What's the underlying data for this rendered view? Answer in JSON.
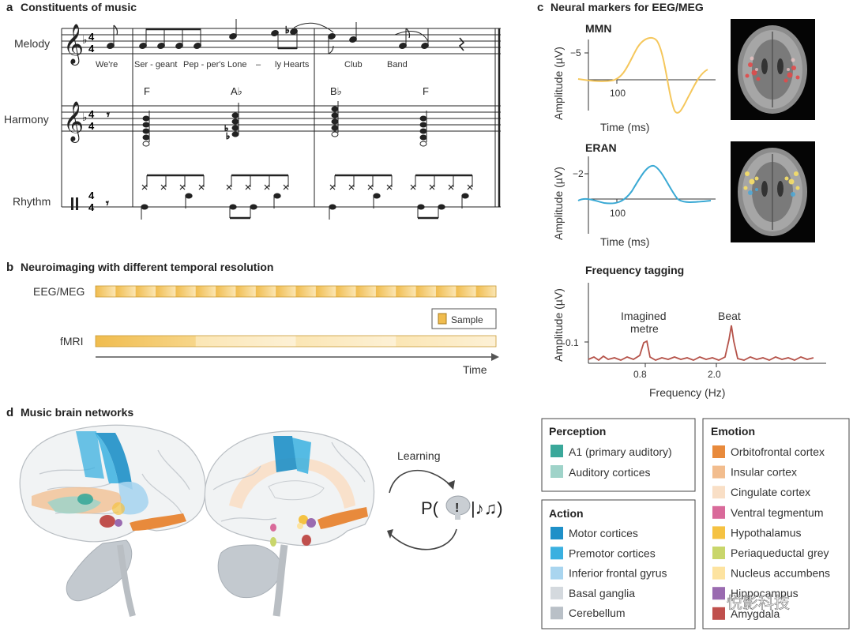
{
  "panels": {
    "a": {
      "letter": "a",
      "title": "Constituents of music"
    },
    "b": {
      "letter": "b",
      "title": "Neuroimaging with different temporal resolution"
    },
    "c": {
      "letter": "c",
      "title": "Neural markers for EEG/MEG"
    },
    "d": {
      "letter": "d",
      "title": "Music brain networks"
    }
  },
  "score": {
    "rows": [
      "Melody",
      "Harmony",
      "Rhythm"
    ],
    "time_signature": [
      "4",
      "4"
    ],
    "lyrics": [
      "We're",
      "Ser - geant",
      "Pep - per's",
      "Lone",
      "–",
      "ly Hearts",
      "Club",
      "Band"
    ],
    "chords": [
      "F",
      "A♭",
      "B♭",
      "F"
    ]
  },
  "imaging": {
    "eeg_label": "EEG/MEG",
    "fmri_label": "fMRI",
    "sample_label": "Sample",
    "time_label": "Time",
    "eeg_segments": 20,
    "fmri_segments": 4,
    "colors": {
      "dark": "#f0bc4e",
      "light": "#fbe6b4",
      "pale": "#fdf1d6"
    }
  },
  "markers": {
    "mmn": {
      "title": "MMN",
      "ylabel": "Amplitude (µV)",
      "xlabel": "Time (ms)",
      "ytick": "−5",
      "xtick": "100",
      "color": "#f5c75c"
    },
    "eran": {
      "title": "ERAN",
      "ylabel": "Amplitude (µV)",
      "xlabel": "Time (ms)",
      "ytick": "−2",
      "xtick": "100",
      "color": "#3aa9d4"
    },
    "freq": {
      "title": "Frequency tagging",
      "ylabel": "Amplitude (µV)",
      "xlabel": "Frequency (Hz)",
      "ytick": "0.1",
      "xticks": [
        "0.8",
        "2.0"
      ],
      "peak1_label": "Imagined\nmetre",
      "peak1_line1": "Imagined",
      "peak1_line2": "metre",
      "peak2_label": "Beat",
      "color": "#b5534a"
    }
  },
  "networks": {
    "learning_label": "Learning",
    "formula_left": "P(",
    "formula_mid": "!",
    "formula_right": "|♪♫)"
  },
  "legend": {
    "perception": {
      "title": "Perception",
      "items": [
        {
          "label": "A1 (primary auditory)",
          "color": "#3aa89a"
        },
        {
          "label": "Auditory cortices",
          "color": "#9fd3c9"
        }
      ]
    },
    "action": {
      "title": "Action",
      "items": [
        {
          "label": "Motor cortices",
          "color": "#1e90c8"
        },
        {
          "label": "Premotor cortices",
          "color": "#3ab0e0"
        },
        {
          "label": "Inferior frontal gyrus",
          "color": "#a9d5ef"
        },
        {
          "label": "Basal ganglia",
          "color": "#d4d9de"
        },
        {
          "label": "Cerebellum",
          "color": "#b9c0c7"
        }
      ]
    },
    "emotion": {
      "title": "Emotion",
      "items": [
        {
          "label": "Orbitofrontal cortex",
          "color": "#e88a3c"
        },
        {
          "label": "Insular cortex",
          "color": "#f2bd8e"
        },
        {
          "label": "Cingulate cortex",
          "color": "#f9dfc6"
        },
        {
          "label": "Ventral tegmentum",
          "color": "#d96a9a"
        },
        {
          "label": "Hypothalamus",
          "color": "#f5c242"
        },
        {
          "label": "Periaqueductal grey",
          "color": "#c9d66b"
        },
        {
          "label": "Nucleus accumbens",
          "color": "#fde3a0"
        },
        {
          "label": "Hippocampus",
          "color": "#9a6bb0"
        },
        {
          "label": "Amygdala",
          "color": "#c0504d"
        }
      ]
    }
  },
  "watermark": "悦影科技"
}
